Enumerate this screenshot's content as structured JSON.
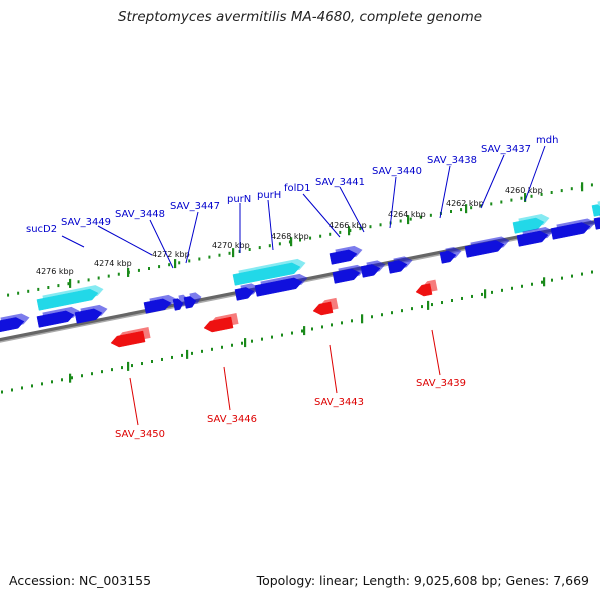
{
  "title": "Streptomyces avermitilis MA-4680, complete genome",
  "footer": {
    "accession": "Accession: NC_003155",
    "summary": "Topology: linear; Length: 9,025,608 bp; Genes: 7,669"
  },
  "colors": {
    "forward_gene": "#1010dd",
    "reverse_gene": "#ee1111",
    "rna_gene": "#22d8e8",
    "backbone": "#777777",
    "ruler": "#1a8a1a",
    "forward_label": "#0000cc",
    "reverse_label": "#dd0000"
  },
  "scale_labels": [
    "4276 kbp",
    "4274 kbp",
    "4272 kbp",
    "4270 kbp",
    "4268 kbp",
    "4266 kbp",
    "4264 kbp",
    "4262 kbp",
    "4260 kbp"
  ],
  "forward_labels": [
    "sucD2",
    "SAV_3449",
    "SAV_3448",
    "SAV_3447",
    "purN",
    "purH",
    "folD1",
    "SAV_3441",
    "SAV_3440",
    "SAV_3438",
    "SAV_3437",
    "mdh"
  ],
  "reverse_labels": [
    "SAV_3450",
    "SAV_3446",
    "SAV_3443",
    "SAV_3439"
  ]
}
